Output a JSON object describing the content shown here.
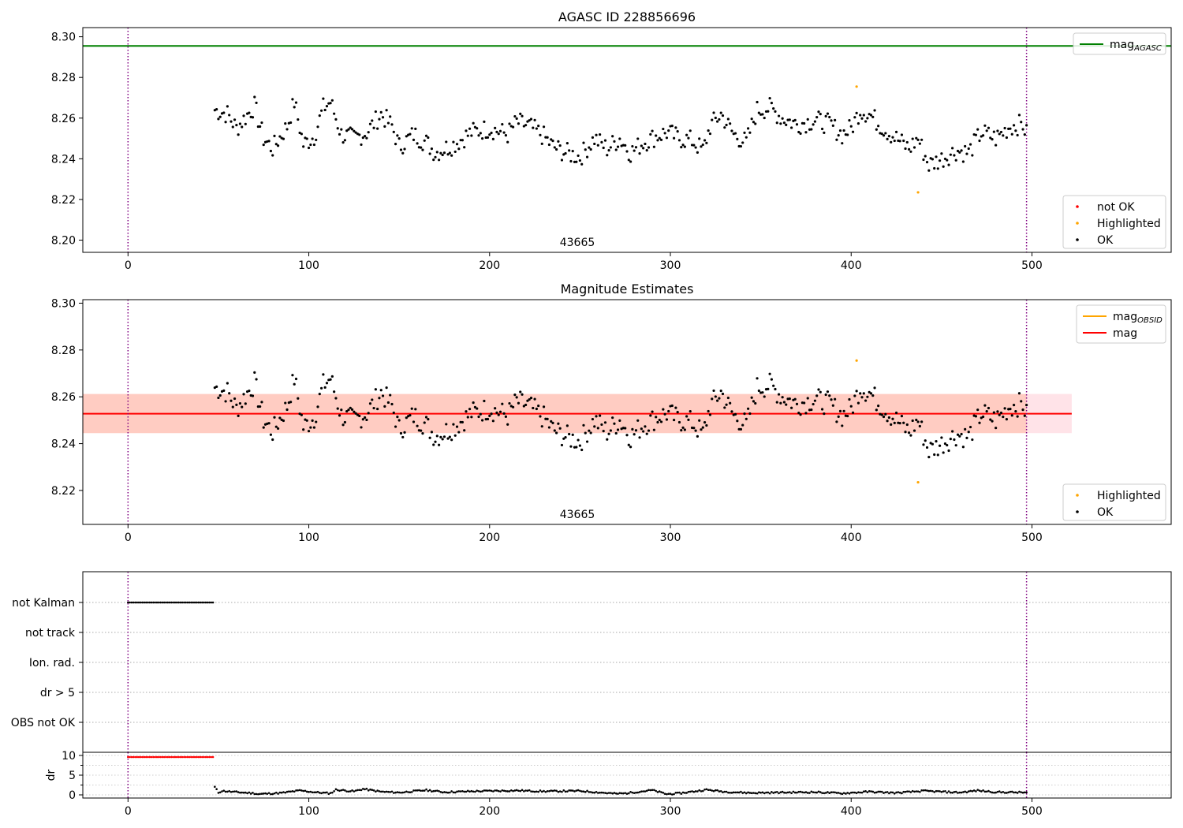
{
  "chart_data": [
    {
      "type": "scatter",
      "title": "AGASC ID 228856696",
      "annotation": "43665",
      "xlim": [
        -25,
        577
      ],
      "ylim": [
        8.194,
        8.3045
      ],
      "xticks": [
        0,
        100,
        200,
        300,
        400,
        500
      ],
      "yticks": [
        8.2,
        8.22,
        8.24,
        8.26,
        8.28,
        8.3
      ],
      "ytick_labels": [
        "8.20",
        "8.22",
        "8.24",
        "8.26",
        "8.28",
        "8.30"
      ],
      "vlines": [
        0,
        497
      ],
      "hline": {
        "name": "mag_AGASC",
        "value": 8.2955,
        "color": "#008000"
      },
      "legend_top": [
        {
          "label": "mag",
          "sub": "AGASC",
          "color": "#008000"
        }
      ],
      "legend_bottom": [
        {
          "label": "not OK",
          "color": "#ff0000"
        },
        {
          "label": "Highlighted",
          "color": "#ffa500"
        },
        {
          "label": "OK",
          "color": "#000000"
        }
      ],
      "series": [
        {
          "name": "OK",
          "color": "#000000",
          "x_start": 48,
          "x_end": 497,
          "keys": [
            [
              48,
              8.264
            ],
            [
              55,
              8.262
            ],
            [
              60,
              8.255
            ],
            [
              70,
              8.266
            ],
            [
              75,
              8.25
            ],
            [
              80,
              8.245
            ],
            [
              88,
              8.256
            ],
            [
              92,
              8.268
            ],
            [
              97,
              8.247
            ],
            [
              103,
              8.251
            ],
            [
              108,
              8.265
            ],
            [
              112,
              8.268
            ],
            [
              118,
              8.252
            ],
            [
              125,
              8.25
            ],
            [
              132,
              8.253
            ],
            [
              140,
              8.262
            ],
            [
              146,
              8.256
            ],
            [
              150,
              8.246
            ],
            [
              158,
              8.252
            ],
            [
              165,
              8.248
            ],
            [
              170,
              8.243
            ],
            [
              180,
              8.247
            ],
            [
              190,
              8.253
            ],
            [
              200,
              8.255
            ],
            [
              210,
              8.252
            ],
            [
              215,
              8.258
            ],
            [
              222,
              8.256
            ],
            [
              230,
              8.251
            ],
            [
              235,
              8.246
            ],
            [
              242,
              8.243
            ],
            [
              250,
              8.241
            ],
            [
              258,
              8.25
            ],
            [
              265,
              8.245
            ],
            [
              272,
              8.25
            ],
            [
              278,
              8.243
            ],
            [
              285,
              8.248
            ],
            [
              292,
              8.251
            ],
            [
              298,
              8.253
            ],
            [
              305,
              8.25
            ],
            [
              312,
              8.249
            ],
            [
              318,
              8.244
            ],
            [
              322,
              8.256
            ],
            [
              328,
              8.262
            ],
            [
              335,
              8.252
            ],
            [
              342,
              8.248
            ],
            [
              348,
              8.264
            ],
            [
              355,
              8.265
            ],
            [
              362,
              8.26
            ],
            [
              370,
              8.257
            ],
            [
              380,
              8.259
            ],
            [
              388,
              8.257
            ],
            [
              395,
              8.252
            ],
            [
              400,
              8.255
            ],
            [
              405,
              8.264
            ],
            [
              410,
              8.262
            ],
            [
              418,
              8.255
            ],
            [
              425,
              8.25
            ],
            [
              432,
              8.245
            ],
            [
              437,
              8.25
            ],
            [
              443,
              8.237
            ],
            [
              450,
              8.24
            ],
            [
              458,
              8.244
            ],
            [
              465,
              8.243
            ],
            [
              472,
              8.253
            ],
            [
              480,
              8.25
            ],
            [
              488,
              8.256
            ],
            [
              495,
              8.257
            ],
            [
              497,
              8.252
            ]
          ],
          "amp": 0.005,
          "seed": 7
        },
        {
          "name": "Highlighted",
          "color": "#ffa500",
          "points": [
            [
              403,
              8.2755
            ],
            [
              437,
              8.2235
            ]
          ]
        }
      ]
    },
    {
      "type": "scatter",
      "title": "Magnitude Estimates",
      "annotation": "43665",
      "xlim": [
        -25,
        577
      ],
      "ylim": [
        8.2055,
        8.3015
      ],
      "xticks": [
        0,
        100,
        200,
        300,
        400,
        500
      ],
      "yticks": [
        8.22,
        8.24,
        8.26,
        8.28,
        8.3
      ],
      "ytick_labels": [
        "8.22",
        "8.24",
        "8.26",
        "8.28",
        "8.30"
      ],
      "vlines": [
        0,
        497
      ],
      "band_mag": {
        "x": [
          -25,
          522
        ],
        "y": [
          8.2445,
          8.2612
        ],
        "color": "#ffc0cb"
      },
      "band_obsid": {
        "x": [
          -25,
          497
        ],
        "y": [
          8.2445,
          8.2612
        ],
        "color": "#ffa07a"
      },
      "line_mag": {
        "x": [
          -25,
          522
        ],
        "value": 8.2528,
        "color": "#ff0000"
      },
      "legend_top": [
        {
          "label": "mag",
          "sub": "OBSID",
          "color": "#ffa500"
        },
        {
          "label": "mag",
          "sub": "",
          "color": "#ff0000"
        }
      ],
      "legend_bottom": [
        {
          "label": "Highlighted",
          "color": "#ffa500"
        },
        {
          "label": "OK",
          "color": "#000000"
        }
      ],
      "series": [
        {
          "name": "OK",
          "color": "#000000",
          "same_as_first": true
        },
        {
          "name": "Highlighted",
          "color": "#ffa500",
          "points": [
            [
              403,
              8.2755
            ],
            [
              437,
              8.2235
            ]
          ]
        }
      ]
    },
    {
      "type": "scatter",
      "xlim": [
        -25,
        577
      ],
      "categories": [
        "not Kalman",
        "not track",
        "Ion. rad.",
        "dr > 5",
        "OBS not OK"
      ],
      "vlines": [
        0,
        497
      ],
      "series": [
        {
          "name": "not Kalman",
          "color": "#000000",
          "x_start": 0,
          "x_end": 47
        }
      ]
    },
    {
      "type": "scatter",
      "ylabel": "dr",
      "xlim": [
        -25,
        577
      ],
      "ylim": [
        -0.8,
        10.8
      ],
      "xticks": [
        0,
        100,
        200,
        300,
        400,
        500
      ],
      "yticks": [
        0,
        5,
        10
      ],
      "ytick_labels": [
        "0",
        "5",
        "10"
      ],
      "vlines": [
        0,
        497
      ],
      "series": [
        {
          "name": "dr > 5",
          "color": "#ff0000",
          "x_start": 0,
          "x_end": 47,
          "value": 9.6
        },
        {
          "name": "dr",
          "color": "#000000",
          "x_start": 48,
          "x_end": 497,
          "keys": [
            [
              48,
              2.0
            ],
            [
              50,
              0.6
            ],
            [
              52,
              1.0
            ],
            [
              60,
              0.7
            ],
            [
              70,
              0.4
            ],
            [
              72,
              0.2
            ],
            [
              85,
              0.5
            ],
            [
              95,
              1.1
            ],
            [
              105,
              0.6
            ],
            [
              112,
              0.4
            ],
            [
              115,
              1.3
            ],
            [
              125,
              0.9
            ],
            [
              130,
              1.5
            ],
            [
              140,
              0.8
            ],
            [
              150,
              0.6
            ],
            [
              165,
              1.2
            ],
            [
              175,
              0.7
            ],
            [
              190,
              0.9
            ],
            [
              200,
              1.0
            ],
            [
              215,
              1.1
            ],
            [
              230,
              0.9
            ],
            [
              250,
              1.0
            ],
            [
              270,
              0.3
            ],
            [
              275,
              0.4
            ],
            [
              290,
              1.2
            ],
            [
              298,
              0.2
            ],
            [
              305,
              0.4
            ],
            [
              320,
              1.3
            ],
            [
              330,
              0.8
            ],
            [
              345,
              0.5
            ],
            [
              360,
              0.6
            ],
            [
              380,
              0.7
            ],
            [
              395,
              0.4
            ],
            [
              410,
              0.8
            ],
            [
              425,
              0.5
            ],
            [
              440,
              1.0
            ],
            [
              460,
              0.6
            ],
            [
              470,
              1.1
            ],
            [
              480,
              0.7
            ],
            [
              497,
              0.6
            ]
          ],
          "amp": 0.2,
          "seed": 11
        }
      ]
    }
  ]
}
